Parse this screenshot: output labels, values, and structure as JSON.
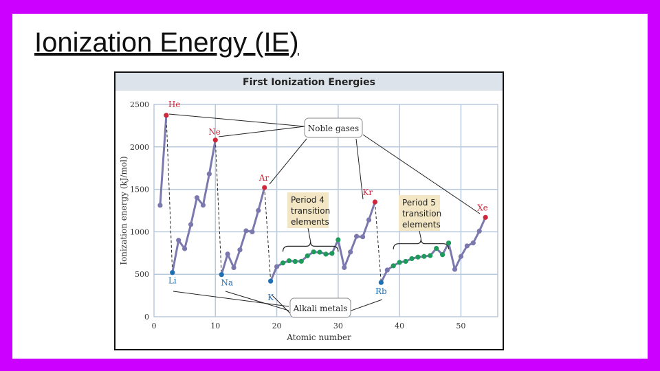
{
  "slide": {
    "title": "Ionization Energy (IE)",
    "background_color": "#cc00ff"
  },
  "chart_data": {
    "type": "line",
    "title": "First Ionization Energies",
    "xlabel": "Atomic number",
    "ylabel": "Ionization energy (kJ/mol)",
    "xlim": [
      0,
      56
    ],
    "ylim": [
      0,
      2500
    ],
    "x_ticks": [
      0,
      10,
      20,
      30,
      40,
      50
    ],
    "y_ticks": [
      0,
      500,
      1000,
      1500,
      2000,
      2500
    ],
    "grid": true,
    "colors": {
      "line": "#7b78ae",
      "point": "#7b78ae",
      "noble_gas": "#d0263a",
      "alkali_metal": "#1f6fb3",
      "transition_metal": "#1e9a5a",
      "grid": "#b8c9dc",
      "title_bar": "#dde3ea"
    },
    "series": [
      {
        "values": [
          [
            1,
            1312
          ],
          [
            2,
            2372
          ],
          [
            3,
            520
          ],
          [
            4,
            900
          ],
          [
            5,
            801
          ],
          [
            6,
            1086
          ],
          [
            7,
            1402
          ],
          [
            8,
            1314
          ],
          [
            9,
            1681
          ],
          [
            10,
            2081
          ],
          [
            11,
            496
          ],
          [
            12,
            738
          ],
          [
            13,
            578
          ],
          [
            14,
            787
          ],
          [
            15,
            1012
          ],
          [
            16,
            1000
          ],
          [
            17,
            1251
          ],
          [
            18,
            1521
          ],
          [
            19,
            419
          ],
          [
            20,
            590
          ],
          [
            21,
            633
          ],
          [
            22,
            659
          ],
          [
            23,
            651
          ],
          [
            24,
            653
          ],
          [
            25,
            717
          ],
          [
            26,
            763
          ],
          [
            27,
            760
          ],
          [
            28,
            737
          ],
          [
            29,
            746
          ],
          [
            30,
            906
          ],
          [
            31,
            579
          ],
          [
            32,
            762
          ],
          [
            33,
            947
          ],
          [
            34,
            941
          ],
          [
            35,
            1140
          ],
          [
            36,
            1351
          ],
          [
            37,
            403
          ],
          [
            38,
            550
          ],
          [
            39,
            600
          ],
          [
            40,
            640
          ],
          [
            41,
            652
          ],
          [
            42,
            684
          ],
          [
            43,
            702
          ],
          [
            44,
            710
          ],
          [
            45,
            720
          ],
          [
            46,
            804
          ],
          [
            47,
            731
          ],
          [
            48,
            868
          ],
          [
            49,
            558
          ],
          [
            50,
            709
          ],
          [
            51,
            834
          ],
          [
            52,
            869
          ],
          [
            53,
            1008
          ],
          [
            54,
            1170
          ]
        ]
      }
    ],
    "point_labels": [
      {
        "text": "He",
        "x": 2,
        "group": "noble_gas"
      },
      {
        "text": "Ne",
        "x": 10,
        "group": "noble_gas"
      },
      {
        "text": "Ar",
        "x": 18,
        "group": "noble_gas"
      },
      {
        "text": "Kr",
        "x": 36,
        "group": "noble_gas"
      },
      {
        "text": "Xe",
        "x": 54,
        "group": "noble_gas"
      },
      {
        "text": "Li",
        "x": 3,
        "group": "alkali_metal"
      },
      {
        "text": "Na",
        "x": 11,
        "group": "alkali_metal"
      },
      {
        "text": "K",
        "x": 19,
        "group": "alkali_metal"
      },
      {
        "text": "Rb",
        "x": 37,
        "group": "alkali_metal"
      }
    ],
    "annotations": {
      "noble_gases": "Noble gases",
      "alkali_metals": "Alkali metals",
      "period4": [
        "Period 4",
        "transition",
        "elements"
      ],
      "period5": [
        "Period 5",
        "transition",
        "elements"
      ]
    },
    "transition_ranges": [
      [
        21,
        30
      ],
      [
        39,
        48
      ]
    ]
  }
}
